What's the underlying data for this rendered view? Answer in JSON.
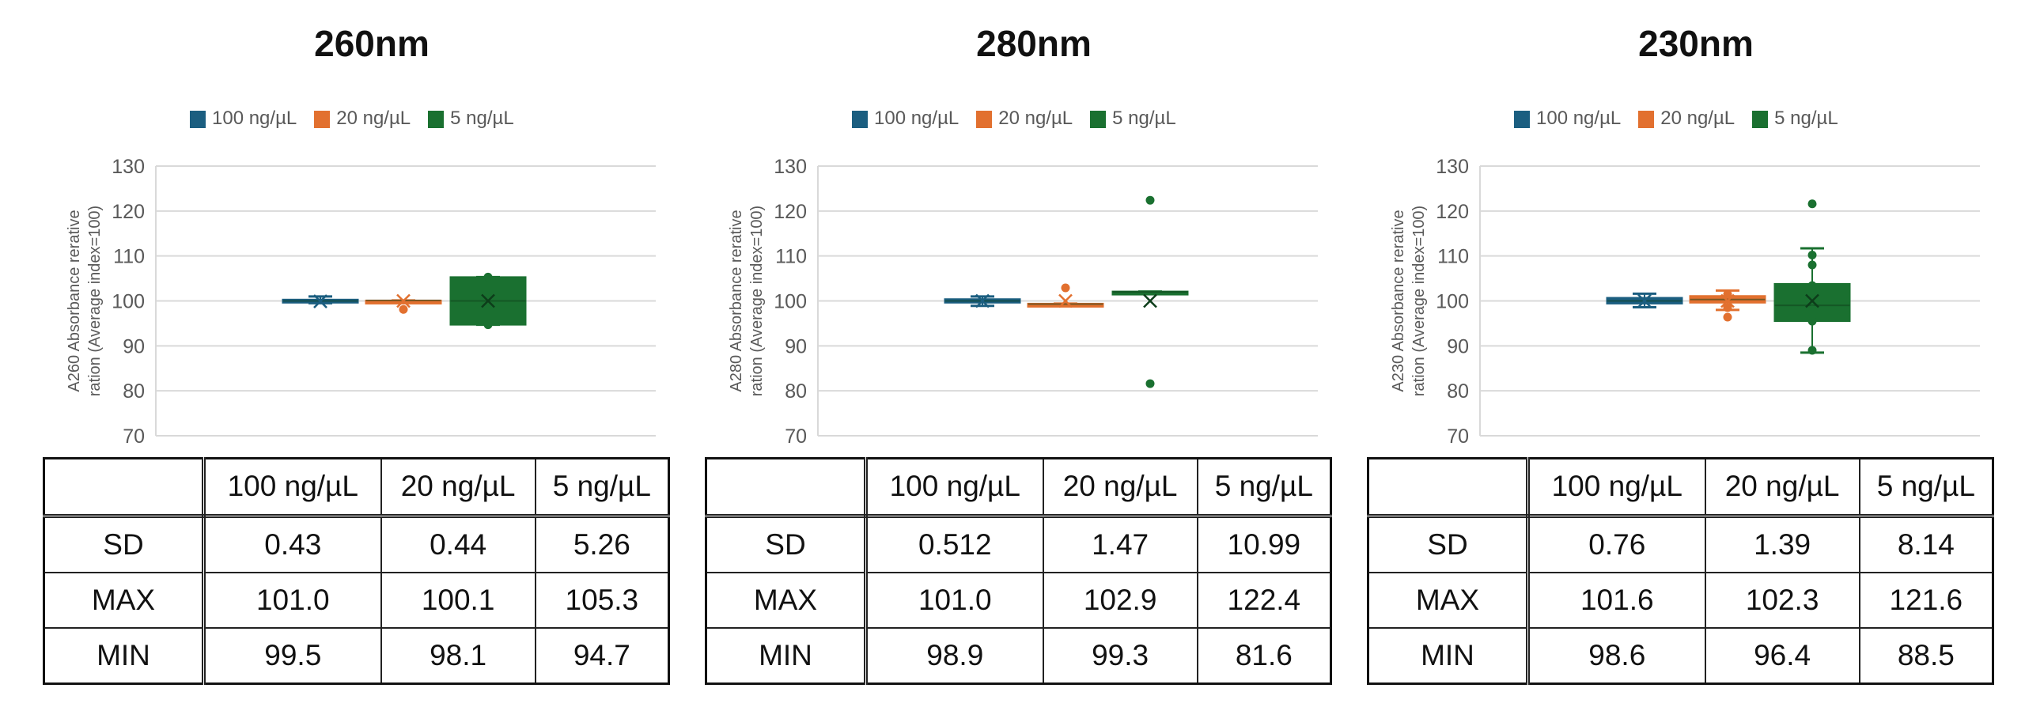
{
  "legend": [
    "100 ng/µL",
    "20 ng/µL",
    "5 ng/µL"
  ],
  "colors": [
    "#1b5e80",
    "#e2702f",
    "#1a7030"
  ],
  "table_rows": [
    "SD",
    "MAX",
    "MIN"
  ],
  "chart_data": [
    {
      "type": "box",
      "title": "260nm",
      "ylabel": "A260 Absorbance rerative ration (Average index=100)",
      "ylim": [
        70,
        130
      ],
      "yticks": [
        "130",
        "120",
        "110",
        "100",
        "90",
        "80",
        "70"
      ],
      "series": [
        {
          "name": "100 ng/µL",
          "q1": 99.8,
          "q3": 100.3,
          "median": 100,
          "mean": 99.9,
          "wmin": 99.5,
          "wmax": 101.0,
          "points": []
        },
        {
          "name": "20 ng/µL",
          "q1": 100.0,
          "q3": 100.1,
          "median": 100.1,
          "mean": 100.0,
          "wmin": 100.0,
          "wmax": 100.1,
          "points": [
            98.1
          ]
        },
        {
          "name": "5 ng/µL",
          "q1": 94.7,
          "q3": 105.3,
          "median": 100,
          "mean": 100,
          "wmin": 94.7,
          "wmax": 105.3,
          "points": [
            105.3,
            94.7
          ]
        }
      ],
      "table": {
        "SD": [
          "0.43",
          "0.44",
          "5.26"
        ],
        "MAX": [
          "101.0",
          "100.1",
          "105.3"
        ],
        "MIN": [
          "99.5",
          "98.1",
          "94.7"
        ]
      }
    },
    {
      "type": "box",
      "title": "280nm",
      "ylabel": "A280 Absorbance rerative ration (Average index=100)",
      "ylim": [
        70,
        130
      ],
      "yticks": [
        "130",
        "120",
        "110",
        "100",
        "90",
        "80",
        "70"
      ],
      "series": [
        {
          "name": "100 ng/µL",
          "q1": 99.6,
          "q3": 100.4,
          "median": 100,
          "mean": 100,
          "wmin": 98.9,
          "wmax": 101.0,
          "points": []
        },
        {
          "name": "20 ng/µL",
          "q1": 99.3,
          "q3": 99.4,
          "median": 99.3,
          "mean": 100,
          "wmin": 99.3,
          "wmax": 99.4,
          "points": [
            102.9
          ]
        },
        {
          "name": "5 ng/µL",
          "q1": 102.0,
          "q3": 102.1,
          "median": 102,
          "mean": 100,
          "wmin": 102,
          "wmax": 102.1,
          "points": [
            122.4,
            81.6
          ]
        }
      ],
      "table": {
        "SD": [
          "0.512",
          "1.47",
          "10.99"
        ],
        "MAX": [
          "101.0",
          "102.9",
          "122.4"
        ],
        "MIN": [
          "98.9",
          "99.3",
          "81.6"
        ]
      }
    },
    {
      "type": "box",
      "title": "230nm",
      "ylabel": "A230 Absorbance rerative ration (Average index=100)",
      "ylim": [
        70,
        130
      ],
      "yticks": [
        "130",
        "120",
        "110",
        "100",
        "90",
        "80",
        "70"
      ],
      "series": [
        {
          "name": "100 ng/µL",
          "q1": 99.4,
          "q3": 100.7,
          "median": 100,
          "mean": 100,
          "wmin": 98.6,
          "wmax": 101.6,
          "points": []
        },
        {
          "name": "20 ng/µL",
          "q1": 99.6,
          "q3": 101.1,
          "median": 100.3,
          "mean": 100,
          "wmin": 98.0,
          "wmax": 102.3,
          "points": [
            96.4,
            98.5,
            101.5
          ]
        },
        {
          "name": "5 ng/µL",
          "q1": 95.5,
          "q3": 103.8,
          "median": 99,
          "mean": 100,
          "wmin": 88.5,
          "wmax": 111.7,
          "points": [
            121.6,
            110.2,
            108,
            103.4,
            98,
            95.5,
            89
          ]
        }
      ],
      "table": {
        "SD": [
          "0.76",
          "1.39",
          "8.14"
        ],
        "MAX": [
          "101.6",
          "102.3",
          "121.6"
        ],
        "MIN": [
          "98.6",
          "96.4",
          "88.5"
        ]
      }
    }
  ]
}
